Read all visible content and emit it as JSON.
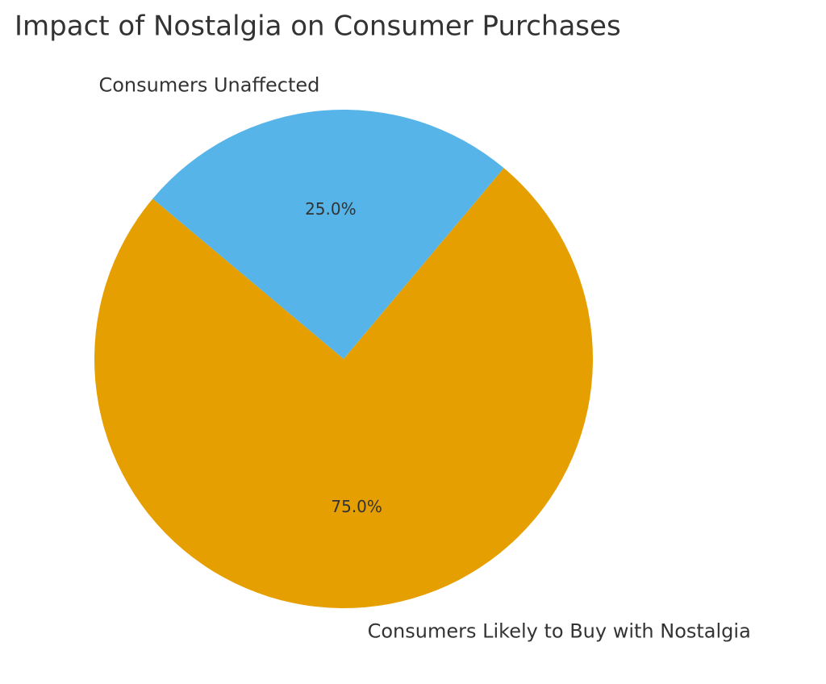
{
  "chart_data": {
    "type": "pie",
    "title": "Impact of Nostalgia on Consumer Purchases",
    "categories": [
      "Consumers Likely to Buy with Nostalgia",
      "Consumers Unaffected"
    ],
    "values": [
      75,
      25
    ],
    "value_labels": [
      "75.0%",
      "25.0%"
    ],
    "colors": [
      "#E69F00",
      "#56B4E9"
    ]
  }
}
